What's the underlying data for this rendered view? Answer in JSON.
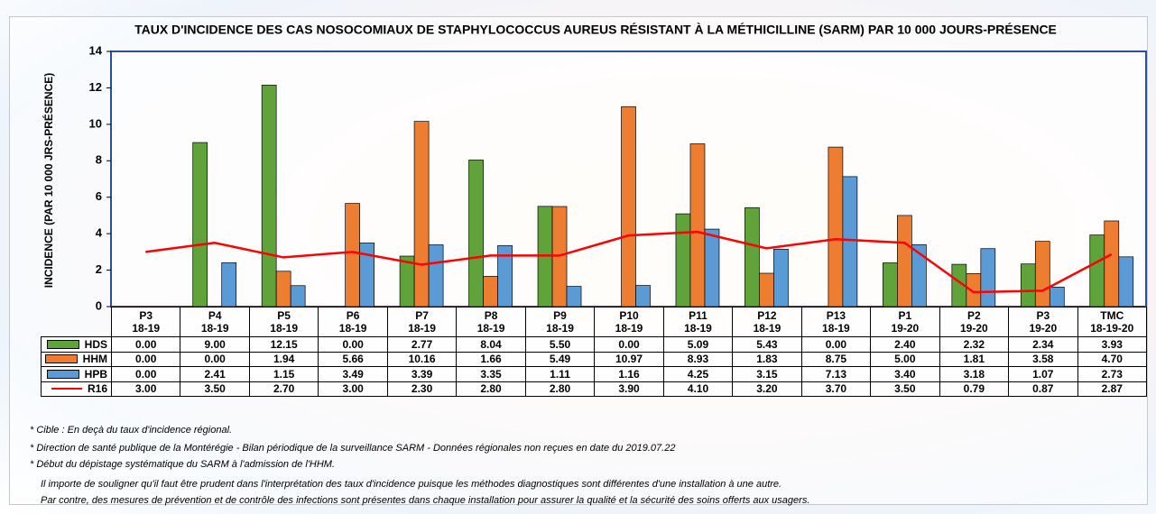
{
  "chart_data": {
    "type": "bar",
    "title": "TAUX D'INCIDENCE DES CAS NOSOCOMIAUX DE STAPHYLOCOCCUS AUREUS RÉSISTANT À LA MÉTHICILLINE (SARM) PAR 10 000 JOURS-PRÉSENCE",
    "y_label": "INCIDENCE  (PAR 10 000 JRS-PRÉSENCE)",
    "categories": [
      "P3\n18-19",
      "P4\n18-19",
      "P5\n18-19",
      "P6\n18-19",
      "P7\n18-19",
      "P8\n18-19",
      "P9\n18-19",
      "P10\n18-19",
      "P11\n18-19",
      "P12\n18-19",
      "P13\n18-19",
      "P1\n19-20",
      "P2\n19-20",
      "P3\n19-20",
      "TMC\n18-19-20"
    ],
    "series": [
      {
        "name": "HDS",
        "type": "bar",
        "color": "#5fa33a",
        "values": [
          0,
          9,
          12.15,
          0,
          2.77,
          8.04,
          5.5,
          0,
          5.09,
          5.43,
          0,
          2.4,
          2.32,
          2.34,
          3.93
        ],
        "value_labels": [
          "0.00",
          "9.00",
          "12.15",
          "0.00",
          "2.77",
          "8.04",
          "5.50",
          "0.00",
          "5.09",
          "5.43",
          "0.00",
          "2.40",
          "2.32",
          "2.34",
          "3.93"
        ]
      },
      {
        "name": "HHM",
        "type": "bar",
        "color": "#ed7d31",
        "values": [
          0,
          0,
          1.94,
          5.66,
          10.16,
          1.66,
          5.49,
          10.97,
          8.93,
          1.83,
          8.75,
          5,
          1.81,
          3.58,
          4.7
        ],
        "value_labels": [
          "0.00",
          "0.00",
          "1.94",
          "5.66",
          "10.16",
          "1.66",
          "5.49",
          "10.97",
          "8.93",
          "1.83",
          "8.75",
          "5.00",
          "1.81",
          "3.58",
          "4.70"
        ]
      },
      {
        "name": "HPB",
        "type": "bar",
        "color": "#5b9bd5",
        "values": [
          0,
          2.41,
          1.15,
          3.49,
          3.39,
          3.35,
          1.11,
          1.16,
          4.25,
          3.15,
          7.13,
          3.4,
          3.18,
          1.07,
          2.73
        ],
        "value_labels": [
          "0.00",
          "2.41",
          "1.15",
          "3.49",
          "3.39",
          "3.35",
          "1.11",
          "1.16",
          "4.25",
          "3.15",
          "7.13",
          "3.40",
          "3.18",
          "1.07",
          "2.73"
        ]
      },
      {
        "name": "R16",
        "type": "line",
        "color": "#ff0000",
        "values": [
          3,
          3.5,
          2.7,
          3,
          2.3,
          2.8,
          2.8,
          3.9,
          4.1,
          3.2,
          3.7,
          3.5,
          0.79,
          0.87,
          2.87
        ],
        "value_labels": [
          "3.00",
          "3.50",
          "2.70",
          "3.00",
          "2.30",
          "2.80",
          "2.80",
          "3.90",
          "4.10",
          "3.20",
          "3.70",
          "3.50",
          "0.79",
          "0.87",
          "2.87"
        ]
      }
    ],
    "ylim": [
      0,
      14
    ],
    "yticks": [
      0,
      2,
      4,
      6,
      8,
      10,
      12,
      14
    ],
    "grid": false,
    "notes": [
      "* Cible : En deçà du taux d'incidence régional.",
      "* Direction de santé publique de la Montérégie - Bilan périodique de la surveillance SARM - Données régionales non reçues en date du 2019.07.22",
      "*  Début du dépistage systématique du SARM à l'admission de l'HHM.",
      "Il importe de souligner qu'il faut être prudent dans l'interprétation des taux d'incidence puisque les méthodes diagnostiques sont différentes d'une installation à une autre.",
      "Par contre, des mesures de prévention et de contrôle des infections sont présentes dans chaque installation pour assurer la qualité et la sécurité des soins offerts aux usagers."
    ]
  }
}
